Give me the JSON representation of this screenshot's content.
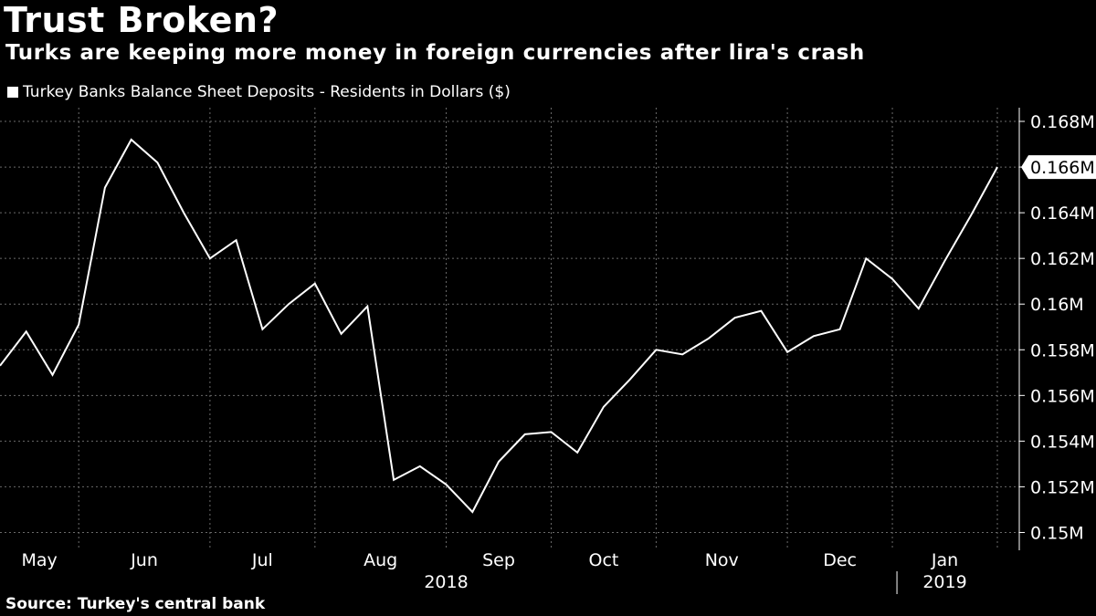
{
  "header": {
    "title": "Trust Broken?",
    "subtitle": "Turks are keeping more money in foreign currencies after lira's crash",
    "source": "Source: Turkey's central bank"
  },
  "chart_data": {
    "type": "line",
    "title": "Trust Broken?",
    "subtitle": "Turks are keeping more money in foreign currencies after lira's crash",
    "legend": [
      "Turkey Banks Balance Sheet Deposits - Residents in Dollars ($)"
    ],
    "xlabel": "",
    "ylabel": "",
    "ylim": [
      0.1493,
      0.1686
    ],
    "y_ticks": [
      0.15,
      0.152,
      0.154,
      0.156,
      0.158,
      0.16,
      0.162,
      0.164,
      0.166,
      0.168
    ],
    "y_tick_labels": [
      "0.15M",
      "0.152M",
      "0.154M",
      "0.156M",
      "0.158M",
      "0.16M",
      "0.162M",
      "0.164M",
      "0.166M",
      "0.168M"
    ],
    "x_range": [
      0,
      38
    ],
    "month_labels": [
      {
        "label": "May",
        "pos": 1.5
      },
      {
        "label": "Jun",
        "pos": 5.5
      },
      {
        "label": "Jul",
        "pos": 10
      },
      {
        "label": "Aug",
        "pos": 14.5
      },
      {
        "label": "Sep",
        "pos": 19
      },
      {
        "label": "Oct",
        "pos": 23
      },
      {
        "label": "Nov",
        "pos": 27.5
      },
      {
        "label": "Dec",
        "pos": 32
      },
      {
        "label": "Jan",
        "pos": 36
      }
    ],
    "month_ticks": [
      3,
      8,
      12,
      17,
      21,
      25,
      30,
      34,
      38
    ],
    "year_labels": [
      {
        "label": "2018",
        "pos": 17
      },
      {
        "label": "2019",
        "pos": 36
      }
    ],
    "year_divider": 34,
    "last_value_label": "0.166M",
    "series": [
      {
        "name": "Turkey Banks Balance Sheet Deposits - Residents in Dollars ($)",
        "color": "#ffffff",
        "x": [
          0,
          1,
          2,
          3,
          4,
          5,
          6,
          7,
          8,
          9,
          10,
          11,
          12,
          13,
          14,
          15,
          16,
          17,
          18,
          19,
          20,
          21,
          22,
          23,
          24,
          25,
          26,
          27,
          28,
          29,
          30,
          31,
          32,
          33,
          34,
          35,
          36,
          37,
          38
        ],
        "values": [
          0.1573,
          0.1588,
          0.1569,
          0.1591,
          0.1651,
          0.1672,
          0.1662,
          0.164,
          0.162,
          0.1628,
          0.1589,
          0.16,
          0.1609,
          0.1587,
          0.1599,
          0.1523,
          0.1529,
          0.1521,
          0.1509,
          0.1531,
          0.1543,
          0.1544,
          0.1535,
          0.1555,
          0.1567,
          0.158,
          0.1578,
          0.1585,
          0.1594,
          0.1597,
          0.1579,
          0.1586,
          0.1589,
          0.162,
          0.1611,
          0.1598,
          0.1619,
          0.1639,
          0.166
        ]
      }
    ]
  }
}
